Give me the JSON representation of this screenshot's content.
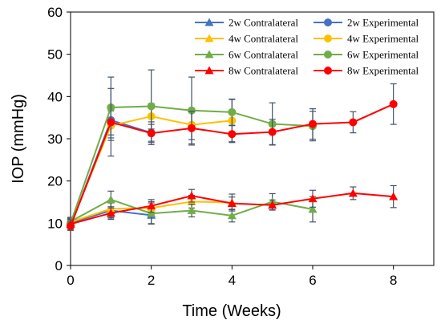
{
  "chart_data": {
    "type": "line",
    "xlabel": "Time (Weeks)",
    "ylabel": "IOP (mmHg)",
    "xlim": [
      0,
      9
    ],
    "ylim": [
      0,
      60
    ],
    "xticks": [
      0,
      2,
      4,
      6,
      8
    ],
    "yticks": [
      0,
      10,
      20,
      30,
      40,
      50,
      60
    ],
    "grid": false,
    "legend_position": "top-right",
    "series": [
      {
        "name": "2w Contralateral",
        "color": "#4472C4",
        "marker": "triangle",
        "x": [
          0,
          1,
          2
        ],
        "y": [
          10.1,
          13.0,
          11.9
        ],
        "err": [
          1.0,
          1.8,
          2.0
        ]
      },
      {
        "name": "2w Experimental",
        "color": "#4472C4",
        "marker": "circle",
        "x": [
          0,
          1,
          2
        ],
        "y": [
          9.4,
          34.4,
          31.4
        ],
        "err": [
          1.0,
          3.5,
          2.0
        ]
      },
      {
        "name": "4w Contralateral",
        "color": "#FFC000",
        "marker": "triangle",
        "x": [
          0,
          1,
          2,
          3,
          4
        ],
        "y": [
          10.3,
          13.4,
          13.6,
          15.1,
          14.9
        ],
        "err": [
          1.0,
          2.0,
          1.5,
          1.5,
          2.0
        ]
      },
      {
        "name": "4w Experimental",
        "color": "#FFC000",
        "marker": "circle",
        "x": [
          0,
          1,
          2,
          3,
          4
        ],
        "y": [
          9.7,
          33.1,
          35.3,
          33.3,
          34.3
        ],
        "err": [
          1.0,
          3.5,
          3.0,
          3.5,
          5.0
        ]
      },
      {
        "name": "6w Contralateral",
        "color": "#70AD47",
        "marker": "triangle",
        "x": [
          0,
          1,
          2,
          3,
          4,
          5,
          6
        ],
        "y": [
          10.4,
          15.6,
          12.3,
          13.0,
          11.8,
          15.1,
          13.3
        ],
        "err": [
          1.0,
          2.0,
          2.5,
          1.5,
          1.5,
          1.9,
          3.0
        ]
      },
      {
        "name": "6w Experimental",
        "color": "#70AD47",
        "marker": "circle",
        "x": [
          0,
          1,
          2,
          3,
          4,
          5,
          6
        ],
        "y": [
          10.0,
          37.4,
          37.7,
          36.7,
          36.3,
          33.5,
          33.0
        ],
        "err": [
          1.0,
          7.2,
          8.6,
          7.9,
          3.1,
          5.0,
          3.5
        ]
      },
      {
        "name": "8w Contralateral",
        "color": "#FF0000",
        "marker": "triangle",
        "x": [
          0,
          1,
          2,
          3,
          4,
          5,
          6,
          7,
          8
        ],
        "y": [
          9.8,
          12.4,
          14.1,
          16.5,
          14.7,
          14.3,
          15.8,
          17.1,
          16.3
        ],
        "err": [
          1.0,
          1.5,
          1.5,
          1.5,
          1.5,
          1.2,
          2.0,
          1.5,
          2.6
        ]
      },
      {
        "name": "8w Experimental",
        "color": "#FF0000",
        "marker": "circle",
        "x": [
          0,
          1,
          2,
          3,
          4,
          5,
          6,
          7,
          8
        ],
        "y": [
          9.3,
          33.9,
          31.3,
          32.5,
          31.1,
          31.6,
          33.5,
          33.9,
          38.2
        ],
        "err": [
          1.0,
          8.0,
          2.7,
          4.0,
          2.0,
          3.0,
          3.6,
          2.5,
          4.8
        ]
      }
    ]
  }
}
